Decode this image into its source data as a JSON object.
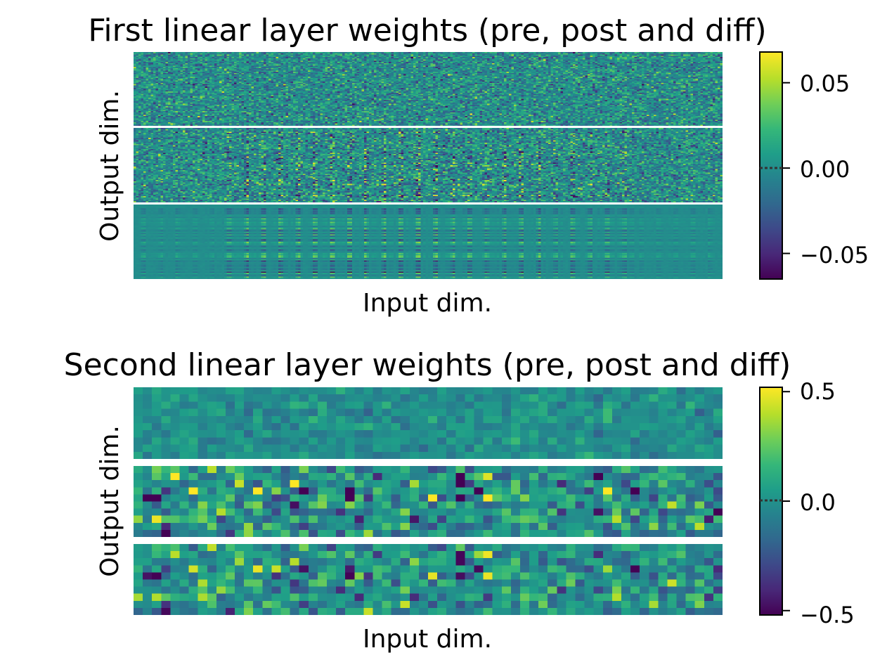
{
  "chart_data": [
    {
      "type": "heatmap",
      "title": "First linear layer weights (pre, post and diff)",
      "xlabel": "Input dim.",
      "ylabel": "Output dim.",
      "panels": [
        "pre",
        "post",
        "diff"
      ],
      "colormap": "viridis",
      "colorbar": {
        "vmin": -0.065,
        "vmax": 0.068,
        "ticks": [
          0.05,
          0.0,
          -0.05
        ],
        "tick_labels": [
          "0.05",
          "0.00",
          "−0.05"
        ]
      },
      "grid_shape": {
        "rows_per_panel": 60,
        "cols": 240
      }
    },
    {
      "type": "heatmap",
      "title": "Second linear layer weights (pre, post and diff)",
      "xlabel": "Input dim.",
      "ylabel": "Output dim.",
      "panels": [
        "pre",
        "post",
        "diff"
      ],
      "colormap": "viridis",
      "colorbar": {
        "vmin": -0.52,
        "vmax": 0.52,
        "ticks": [
          0.5,
          0.0,
          -0.5
        ],
        "tick_labels": [
          "0.5",
          "0.0",
          "−0.5"
        ]
      },
      "grid_shape": {
        "rows_per_panel": 10,
        "cols": 64
      }
    }
  ],
  "colors": {
    "viridis": [
      "#440154",
      "#482878",
      "#3e4989",
      "#31688e",
      "#26828e",
      "#1f9e89",
      "#35b779",
      "#6ece58",
      "#b5de2b",
      "#fde725"
    ]
  }
}
